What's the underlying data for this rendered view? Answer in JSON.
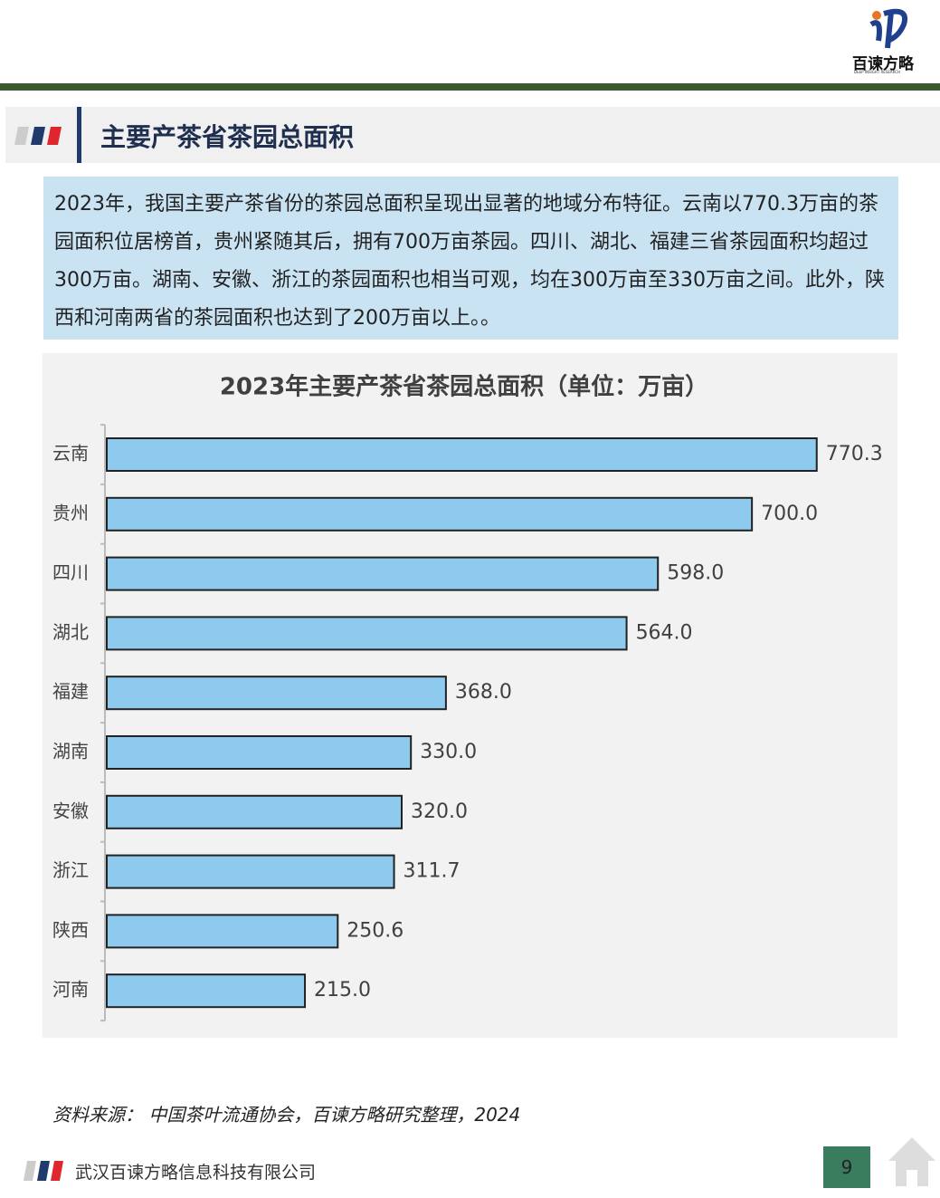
{
  "header": {
    "logo_name": "百谏方略",
    "logo_tagline": "DEEP INSIGHT RESEARCH"
  },
  "section": {
    "title": "主要产茶省茶园总面积"
  },
  "summary": "2023年，我国主要产茶省份的茶园总面积呈现出显著的地域分布特征。云南以770.3万亩的茶园面积位居榜首，贵州紧随其后，拥有700万亩茶园。四川、湖北、福建三省茶园面积均超过300万亩。湖南、安徽、浙江的茶园面积也相当可观，均在300万亩至330万亩之间。此外，陕西和河南两省的茶园面积也达到了200万亩以上。。",
  "chart_data": {
    "type": "hbar",
    "title": "2023年主要产茶省茶园总面积（单位：万亩）",
    "categories": [
      "云南",
      "贵州",
      "四川",
      "湖北",
      "福建",
      "湖南",
      "安徽",
      "浙江",
      "陕西",
      "河南"
    ],
    "values": [
      770.3,
      700,
      598,
      564,
      368,
      330,
      320,
      311.7,
      250.6,
      215
    ],
    "value_labels": [
      "770.3",
      "700.0",
      "598.0",
      "564.0",
      "368.0",
      "330.0",
      "320.0",
      "311.7",
      "250.6",
      "215.0"
    ],
    "color": "#8ec9ee",
    "xlim": [
      0,
      800
    ]
  },
  "source": "资料来源：  中国茶叶流通协会，百谏方略研究整理，2024",
  "footer": {
    "company": "武汉百谏方略信息科技有限公司",
    "page": "9"
  }
}
